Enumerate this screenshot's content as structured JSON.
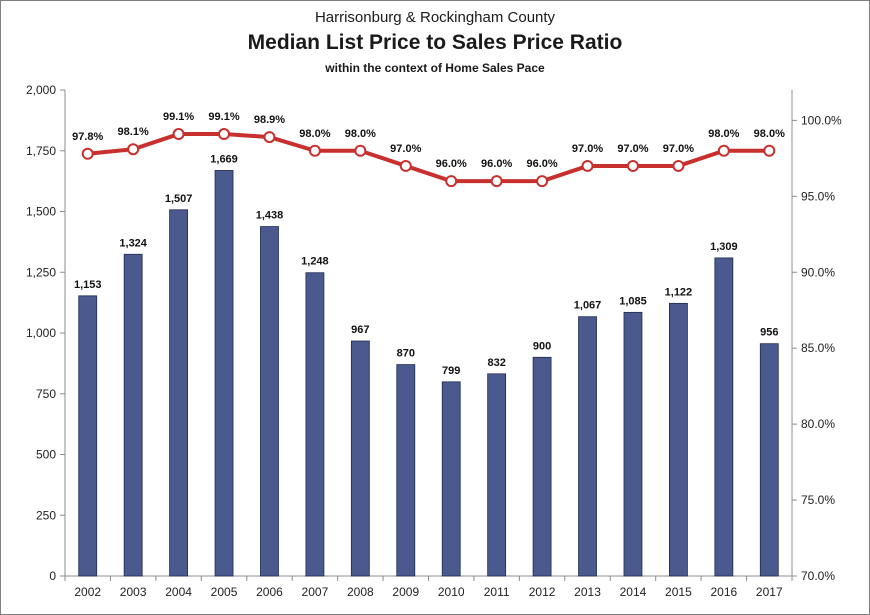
{
  "header": {
    "title_top": "Harrisonburg & Rockingham County",
    "title_main": "Median List Price to Sales Price Ratio",
    "title_sub": "within the context of Home Sales Pace"
  },
  "chart_data": {
    "type": "bar",
    "categories": [
      "2002",
      "2003",
      "2004",
      "2005",
      "2006",
      "2007",
      "2008",
      "2009",
      "2010",
      "2011",
      "2012",
      "2013",
      "2014",
      "2015",
      "2016",
      "2017"
    ],
    "series": [
      {
        "type": "bar",
        "axis": "left",
        "color": "#4a5a8f",
        "values": [
          1153,
          1324,
          1507,
          1669,
          1438,
          1248,
          967,
          870,
          799,
          832,
          900,
          1067,
          1085,
          1122,
          1309,
          956
        ],
        "labels": [
          "1,153",
          "1,324",
          "1,507",
          "1,669",
          "1,438",
          "1,248",
          "967",
          "870",
          "799",
          "832",
          "900",
          "1,067",
          "1,085",
          "1,122",
          "1,309",
          "956"
        ]
      },
      {
        "type": "line",
        "axis": "right",
        "color": "#c8302d",
        "values": [
          97.8,
          98.1,
          99.1,
          99.1,
          98.9,
          98.0,
          98.0,
          97.0,
          96.0,
          96.0,
          96.0,
          97.0,
          97.0,
          97.0,
          98.0,
          98.0
        ],
        "labels": [
          "97.8%",
          "98.1%",
          "99.1%",
          "99.1%",
          "98.9%",
          "98.0%",
          "98.0%",
          "97.0%",
          "96.0%",
          "96.0%",
          "96.0%",
          "97.0%",
          "97.0%",
          "97.0%",
          "98.0%",
          "98.0%"
        ]
      }
    ],
    "y_left": {
      "ylim": [
        0,
        2000
      ],
      "ticks": [
        0,
        250,
        500,
        750,
        1000,
        1250,
        1500,
        1750,
        2000
      ],
      "tick_labels": [
        "0",
        "250",
        "500",
        "750",
        "1,000",
        "1,250",
        "1,500",
        "1,750",
        "2,000"
      ]
    },
    "y_right": {
      "ylim": [
        70,
        102
      ],
      "ticks": [
        70,
        75,
        80,
        85,
        90,
        95,
        100
      ],
      "tick_labels": [
        "70.0%",
        "75.0%",
        "80.0%",
        "85.0%",
        "90.0%",
        "95.0%",
        "100.0%"
      ]
    },
    "grid": false,
    "legend": "none"
  }
}
